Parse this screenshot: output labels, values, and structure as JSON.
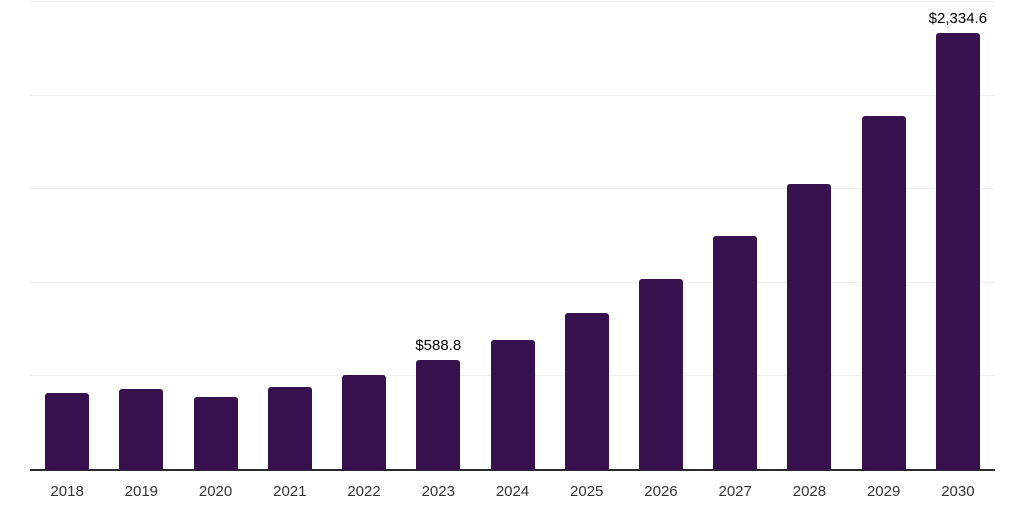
{
  "chart_data": {
    "type": "bar",
    "title": "",
    "xlabel": "",
    "ylabel": "",
    "categories": [
      "2018",
      "2019",
      "2020",
      "2021",
      "2022",
      "2023",
      "2024",
      "2025",
      "2026",
      "2027",
      "2028",
      "2029",
      "2030"
    ],
    "values": [
      411,
      434,
      388,
      443,
      507,
      588.8,
      695,
      839,
      1021,
      1250,
      1528,
      1890,
      2334.6
    ],
    "data_labels": {
      "2023": "$588.8",
      "2030": "$2,334.6"
    },
    "ylim": [
      0,
      2500
    ],
    "gridline_values": [
      500,
      1000,
      1500,
      2000,
      2500
    ],
    "grid": "horizontal",
    "legend": "none",
    "colors": {
      "bar": "#36114D",
      "axis_line": "#2b2b2b",
      "gridline": "#f2f2f2",
      "data_label_text": "#000000",
      "tick_text": "#333333",
      "background": "#ffffff"
    }
  }
}
